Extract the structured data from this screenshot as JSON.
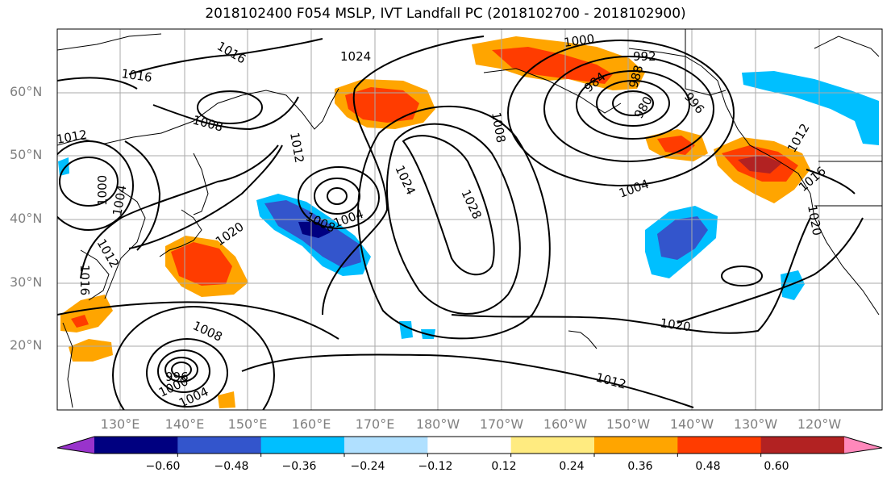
{
  "title": "2018102400 F054 MSLP, IVT Landfall PC (2018102700 - 2018102900)",
  "lat_labels": [
    "60°N",
    "50°N",
    "40°N",
    "30°N",
    "20°N"
  ],
  "lon_labels": [
    "130°E",
    "140°E",
    "150°E",
    "160°E",
    "170°E",
    "180°W",
    "170°W",
    "160°W",
    "150°W",
    "140°W",
    "130°W",
    "120°W"
  ],
  "isobar_labels": {
    "l1016a": "1016",
    "l1016b": "1016",
    "l1024a": "1024",
    "l1000a": "1000",
    "l992": "992",
    "l984": "984",
    "l988": "988",
    "l980": "980",
    "l996": "996",
    "l1008a": "1008",
    "l1012a": "1012",
    "l1000b": "1000",
    "l1004a": "1004",
    "l1012b": "1012",
    "l1020a": "1020",
    "l1016c": "1016",
    "l1012c": "1012",
    "l1008b": "1008",
    "l1004b": "1004",
    "l1024b": "1024",
    "l1028": "1028",
    "l1004c": "1004",
    "l1020b": "1020",
    "l1016d": "1016",
    "l1020c": "1020",
    "l1012d": "1012",
    "l1008c": "1008",
    "l1000c": "1000",
    "l1004d": "1004",
    "l996b": "996",
    "l1008d": "1008"
  },
  "colorbar": {
    "colors": [
      "#9933cc",
      "#000080",
      "#3355cc",
      "#00bfff",
      "#b0e0ff",
      "#ffffff",
      "#ffeb80",
      "#ffa500",
      "#ff3c00",
      "#b22222",
      "#ff88bb"
    ],
    "tick_labels": [
      "−0.60",
      "−0.48",
      "−0.36",
      "−0.24",
      "−0.12",
      "0.12",
      "0.24",
      "0.36",
      "0.48",
      "0.60"
    ]
  }
}
